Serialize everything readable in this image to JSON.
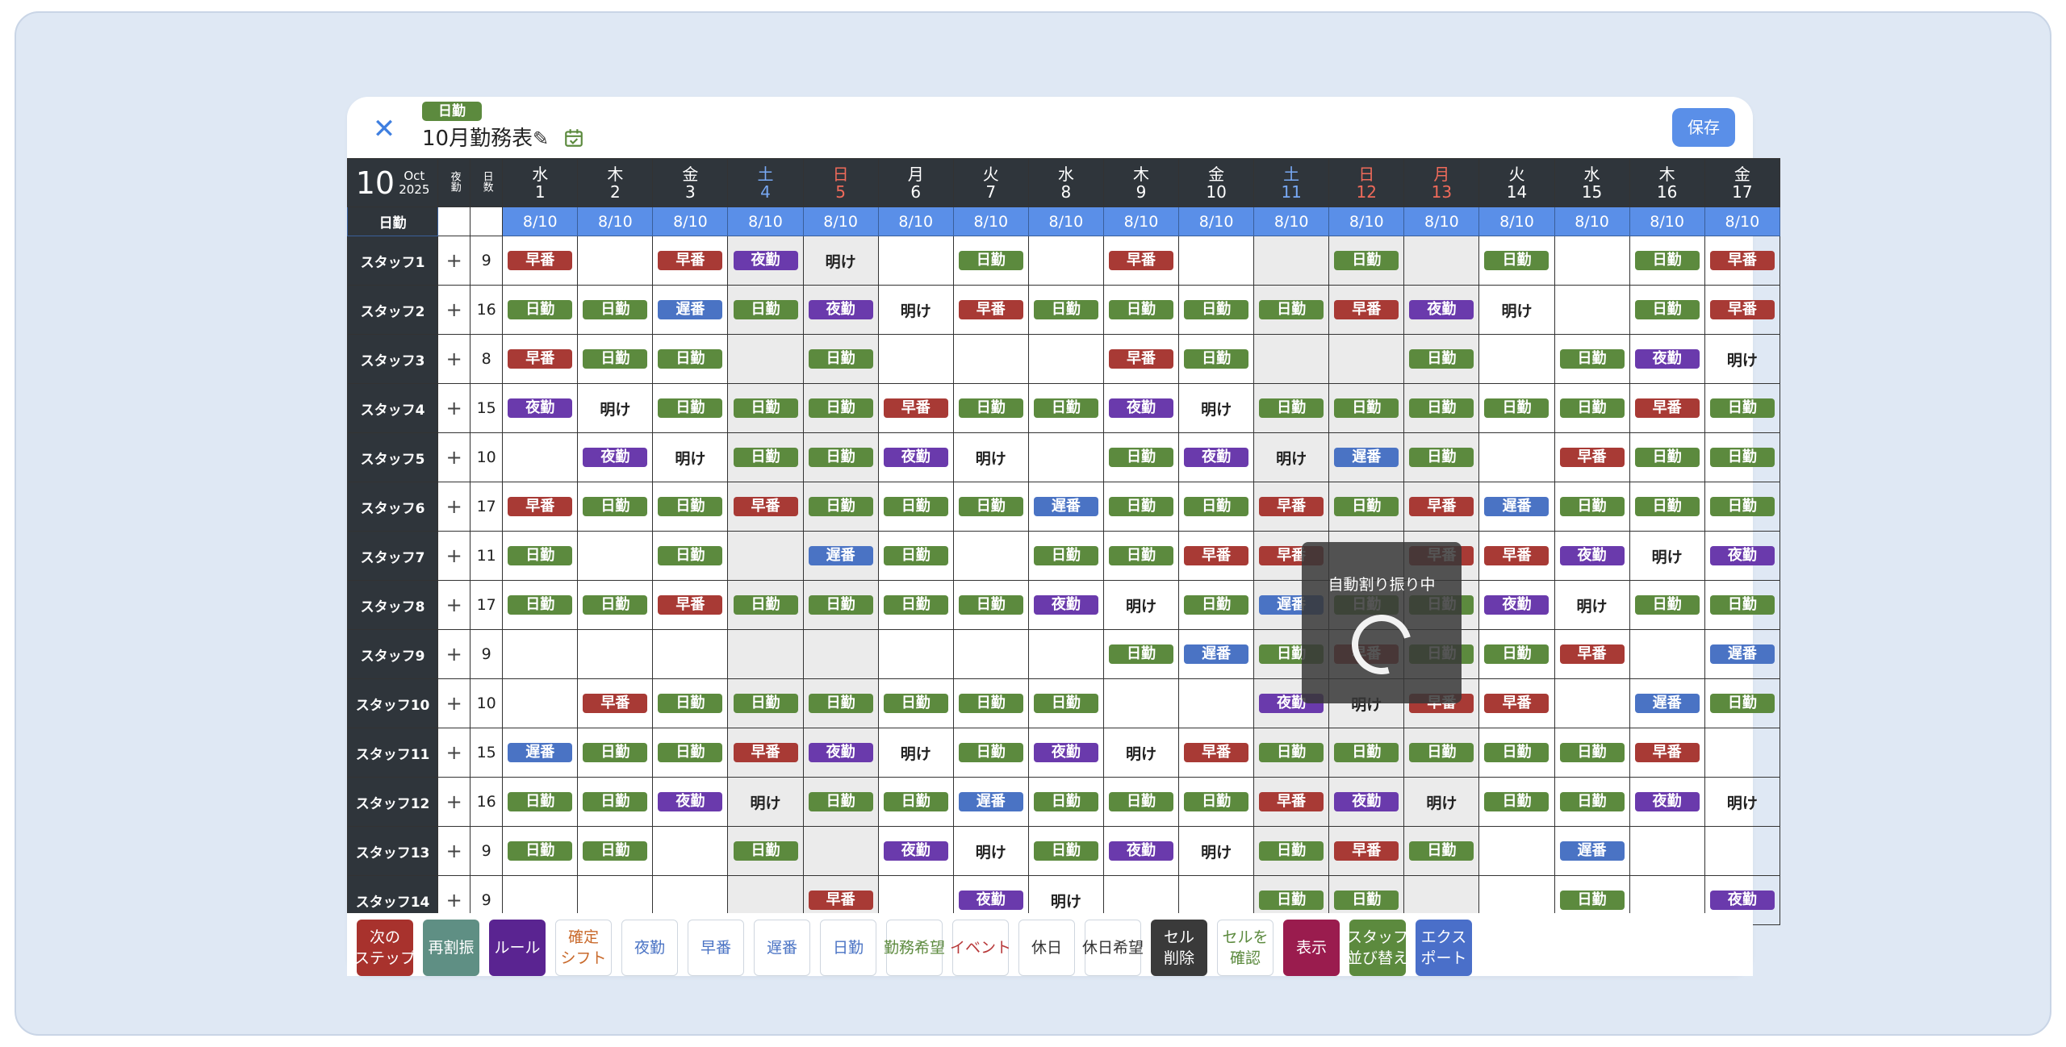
{
  "header": {
    "shift_type_badge": "日勤",
    "title": "10月勤務表",
    "save_label": "保存",
    "close_glyph": "✕",
    "pencil_glyph": "✎"
  },
  "calendar": {
    "month": "10",
    "month_en": "Oct",
    "year": "2025",
    "col_night_hdr": "夜勤",
    "col_days_hdr": "日数",
    "days": [
      {
        "w": "水",
        "d": "1"
      },
      {
        "w": "木",
        "d": "2"
      },
      {
        "w": "金",
        "d": "3"
      },
      {
        "w": "土",
        "d": "4"
      },
      {
        "w": "日",
        "d": "5"
      },
      {
        "w": "月",
        "d": "6"
      },
      {
        "w": "火",
        "d": "7"
      },
      {
        "w": "水",
        "d": "8"
      },
      {
        "w": "木",
        "d": "9"
      },
      {
        "w": "金",
        "d": "10"
      },
      {
        "w": "土",
        "d": "11"
      },
      {
        "w": "日",
        "d": "12"
      },
      {
        "w": "月",
        "d": "13"
      },
      {
        "w": "火",
        "d": "14"
      },
      {
        "w": "水",
        "d": "15"
      },
      {
        "w": "木",
        "d": "16"
      },
      {
        "w": "金",
        "d": "17"
      }
    ],
    "daily_label": "日勤",
    "daily_counts": [
      "8/10",
      "8/10",
      "8/10",
      "8/10",
      "8/10",
      "8/10",
      "8/10",
      "8/10",
      "8/10",
      "8/10",
      "8/10",
      "8/10",
      "8/10",
      "8/10",
      "8/10",
      "8/10",
      "8/10"
    ]
  },
  "legend": {
    "D": "日勤",
    "E": "早番",
    "L": "遅番",
    "N": "夜勤",
    "A": "明け"
  },
  "staff": [
    {
      "name": "スタッフ1",
      "plus": "+",
      "days": "9",
      "shifts": [
        "E",
        "",
        "E",
        "N",
        "A",
        "",
        "D",
        "",
        "E",
        "",
        "",
        "D",
        "",
        "D",
        "",
        "D",
        "E"
      ]
    },
    {
      "name": "スタッフ2",
      "plus": "+",
      "days": "16",
      "shifts": [
        "D",
        "D",
        "L",
        "D",
        "N",
        "A",
        "E",
        "D",
        "D",
        "D",
        "D",
        "E",
        "N",
        "A",
        "",
        "D",
        "E"
      ]
    },
    {
      "name": "スタッフ3",
      "plus": "+",
      "days": "8",
      "shifts": [
        "E",
        "D",
        "D",
        "",
        "D",
        "",
        "",
        "",
        "E",
        "D",
        "",
        "",
        "D",
        "",
        "D",
        "N",
        "A"
      ]
    },
    {
      "name": "スタッフ4",
      "plus": "+",
      "days": "15",
      "shifts": [
        "N",
        "A",
        "D",
        "D",
        "D",
        "E",
        "D",
        "D",
        "N",
        "A",
        "D",
        "D",
        "D",
        "D",
        "D",
        "E",
        "D"
      ]
    },
    {
      "name": "スタッフ5",
      "plus": "+",
      "days": "10",
      "shifts": [
        "",
        "N",
        "A",
        "D",
        "D",
        "N",
        "A",
        "",
        "D",
        "N",
        "A",
        "L",
        "D",
        "",
        "E",
        "D",
        "D"
      ]
    },
    {
      "name": "スタッフ6",
      "plus": "+",
      "days": "17",
      "shifts": [
        "E",
        "D",
        "D",
        "E",
        "D",
        "D",
        "D",
        "L",
        "D",
        "D",
        "E",
        "D",
        "E",
        "L",
        "D",
        "D",
        "D"
      ]
    },
    {
      "name": "スタッフ7",
      "plus": "+",
      "days": "11",
      "shifts": [
        "D",
        "",
        "D",
        "",
        "L",
        "D",
        "",
        "D",
        "D",
        "E",
        "E",
        "",
        "E",
        "E",
        "N",
        "A",
        "N"
      ]
    },
    {
      "name": "スタッフ8",
      "plus": "+",
      "days": "17",
      "shifts": [
        "D",
        "D",
        "E",
        "D",
        "D",
        "D",
        "D",
        "N",
        "A",
        "D",
        "L",
        "D",
        "D",
        "N",
        "A",
        "D",
        "D"
      ]
    },
    {
      "name": "スタッフ9",
      "plus": "+",
      "days": "9",
      "shifts": [
        "",
        "",
        "",
        "",
        "",
        "",
        "",
        "",
        "D",
        "L",
        "D",
        "E",
        "D",
        "D",
        "E",
        "",
        "L"
      ]
    },
    {
      "name": "スタッフ10",
      "plus": "+",
      "days": "10",
      "shifts": [
        "",
        "E",
        "D",
        "D",
        "D",
        "D",
        "D",
        "D",
        "",
        "",
        "N",
        "A",
        "E",
        "E",
        "",
        "L",
        "D"
      ]
    },
    {
      "name": "スタッフ11",
      "plus": "+",
      "days": "15",
      "shifts": [
        "L",
        "D",
        "D",
        "E",
        "N",
        "A",
        "D",
        "N",
        "A",
        "E",
        "D",
        "D",
        "D",
        "D",
        "D",
        "E",
        ""
      ]
    },
    {
      "name": "スタッフ12",
      "plus": "+",
      "days": "16",
      "shifts": [
        "D",
        "D",
        "N",
        "A",
        "D",
        "D",
        "L",
        "D",
        "D",
        "D",
        "E",
        "N",
        "A",
        "D",
        "D",
        "N",
        "A"
      ]
    },
    {
      "name": "スタッフ13",
      "plus": "+",
      "days": "9",
      "shifts": [
        "D",
        "D",
        "",
        "D",
        "",
        "N",
        "A",
        "D",
        "N",
        "A",
        "D",
        "E",
        "D",
        "",
        "L",
        "",
        ""
      ]
    },
    {
      "name": "スタッフ14",
      "plus": "+",
      "days": "9",
      "shifts": [
        "",
        "",
        "",
        "",
        "E",
        "",
        "N",
        "A",
        "",
        "",
        "D",
        "D",
        "",
        "",
        "D",
        "",
        "N"
      ]
    }
  ],
  "overlay": {
    "text": "自動割り振り中"
  },
  "toolbar": [
    {
      "key": "next",
      "label": "次の\nステップ",
      "bg": "#a8322d",
      "fg": "#ffffff",
      "border": "#a8322d"
    },
    {
      "key": "reassign",
      "label": "再割振",
      "bg": "#5f8f84",
      "fg": "#ffffff",
      "border": "#5f8f84"
    },
    {
      "key": "rule",
      "label": "ルール",
      "bg": "#5a2491",
      "fg": "#ffffff",
      "border": "#5a2491"
    },
    {
      "key": "confirmed",
      "label": "確定\nシフト",
      "bg": "#ffffff",
      "fg": "#c96a2c",
      "border": "#cfd6df"
    },
    {
      "key": "night",
      "label": "夜勤",
      "bg": "#ffffff",
      "fg": "#4a73c4",
      "border": "#cfd6df"
    },
    {
      "key": "early",
      "label": "早番",
      "bg": "#ffffff",
      "fg": "#4a73c4",
      "border": "#cfd6df"
    },
    {
      "key": "late",
      "label": "遅番",
      "bg": "#ffffff",
      "fg": "#4a73c4",
      "border": "#cfd6df"
    },
    {
      "key": "day",
      "label": "日勤",
      "bg": "#ffffff",
      "fg": "#4a73c4",
      "border": "#cfd6df"
    },
    {
      "key": "request",
      "label": "勤務希望",
      "bg": "#ffffff",
      "fg": "#5c8a3e",
      "border": "#cfd6df"
    },
    {
      "key": "event",
      "label": "イベント",
      "bg": "#ffffff",
      "fg": "#b8393a",
      "border": "#cfd6df"
    },
    {
      "key": "holiday",
      "label": "休日",
      "bg": "#ffffff",
      "fg": "#333333",
      "border": "#cfd6df"
    },
    {
      "key": "holiday_req",
      "label": "休日希望",
      "bg": "#ffffff",
      "fg": "#333333",
      "border": "#cfd6df"
    },
    {
      "key": "cell_delete",
      "label": "セル\n削除",
      "bg": "#3a3a3a",
      "fg": "#ffffff",
      "border": "#3a3a3a"
    },
    {
      "key": "cell_check",
      "label": "セルを\n確認",
      "bg": "#ffffff",
      "fg": "#5c8a3e",
      "border": "#cfd6df"
    },
    {
      "key": "display",
      "label": "表示",
      "bg": "#9a1c4e",
      "fg": "#ffffff",
      "border": "#9a1c4e"
    },
    {
      "key": "sort",
      "label": "スタッフ\n並び替え",
      "bg": "#5c8a3e",
      "fg": "#ffffff",
      "border": "#5c8a3e"
    },
    {
      "key": "export",
      "label": "エクス\nポート",
      "bg": "#4a6fc9",
      "fg": "#ffffff",
      "border": "#4a6fc9"
    }
  ],
  "colors": {
    "day": "#5c8a3e",
    "early": "#a83a35",
    "late": "#4a73c4",
    "night": "#6a3aac",
    "header_bg": "#2f353b",
    "daily_bg": "#5a8fe8",
    "weekend_gray": "#ebebeb",
    "saturday": "#78a9f5",
    "sunday": "#ef6a5a"
  }
}
